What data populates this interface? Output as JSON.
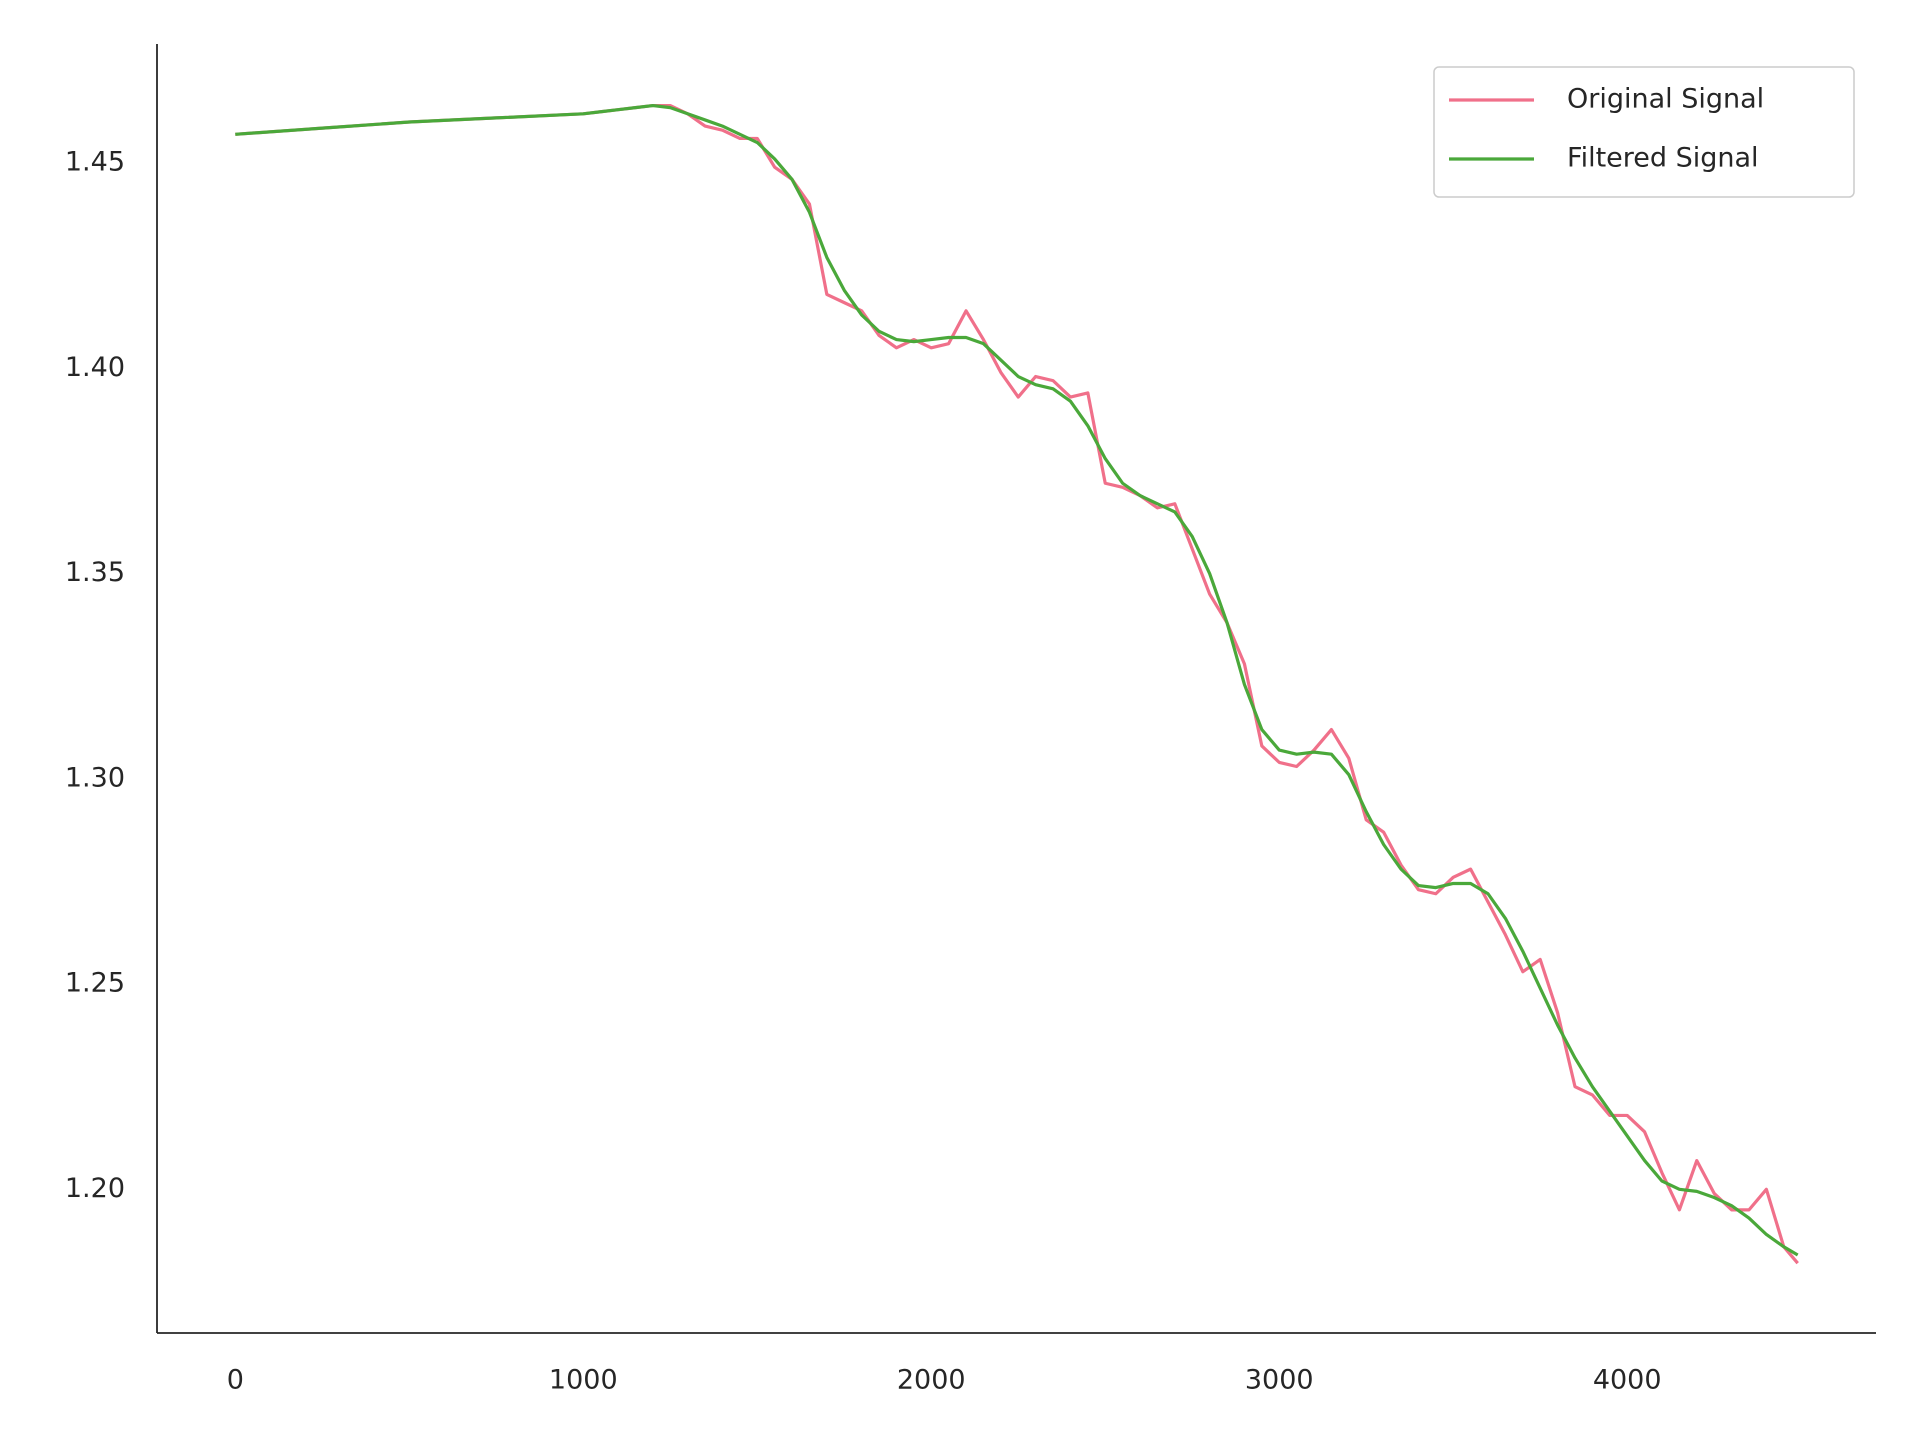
{
  "chart_data": {
    "type": "line",
    "x": [
      0,
      250,
      500,
      750,
      1000,
      1050,
      1100,
      1150,
      1200,
      1250,
      1300,
      1350,
      1400,
      1450,
      1500,
      1550,
      1600,
      1650,
      1700,
      1750,
      1800,
      1850,
      1900,
      1950,
      2000,
      2050,
      2100,
      2150,
      2200,
      2250,
      2300,
      2350,
      2400,
      2450,
      2500,
      2550,
      2600,
      2650,
      2700,
      2750,
      2800,
      2850,
      2900,
      2950,
      3000,
      3050,
      3100,
      3150,
      3200,
      3250,
      3300,
      3350,
      3400,
      3450,
      3500,
      3550,
      3600,
      3650,
      3700,
      3750,
      3800,
      3850,
      3900,
      3950,
      4000,
      4050,
      4100,
      4150,
      4200,
      4250,
      4300,
      4350,
      4400,
      4450,
      4490
    ],
    "series": [
      {
        "name": "Original Signal",
        "color": "#f0708a",
        "values": [
          1.457,
          1.4585,
          1.46,
          1.461,
          1.462,
          1.4625,
          1.463,
          1.4635,
          1.464,
          1.464,
          1.462,
          1.459,
          1.458,
          1.456,
          1.456,
          1.449,
          1.446,
          1.44,
          1.418,
          1.416,
          1.414,
          1.408,
          1.405,
          1.407,
          1.405,
          1.406,
          1.414,
          1.407,
          1.399,
          1.393,
          1.398,
          1.397,
          1.393,
          1.394,
          1.372,
          1.371,
          1.369,
          1.366,
          1.367,
          1.356,
          1.345,
          1.338,
          1.328,
          1.308,
          1.304,
          1.303,
          1.307,
          1.312,
          1.305,
          1.29,
          1.287,
          1.279,
          1.273,
          1.272,
          1.276,
          1.278,
          1.27,
          1.262,
          1.253,
          1.256,
          1.243,
          1.225,
          1.223,
          1.218,
          1.218,
          1.214,
          1.204,
          1.195,
          1.207,
          1.199,
          1.195,
          1.195,
          1.2,
          1.186,
          1.182
        ]
      },
      {
        "name": "Filtered Signal",
        "color": "#4aa83a",
        "values": [
          1.457,
          1.4585,
          1.46,
          1.461,
          1.462,
          1.4625,
          1.463,
          1.4635,
          1.464,
          1.4635,
          1.462,
          1.4605,
          1.459,
          1.457,
          1.455,
          1.451,
          1.446,
          1.438,
          1.427,
          1.419,
          1.413,
          1.409,
          1.407,
          1.4065,
          1.407,
          1.4075,
          1.4075,
          1.406,
          1.402,
          1.398,
          1.396,
          1.395,
          1.392,
          1.386,
          1.378,
          1.372,
          1.369,
          1.367,
          1.365,
          1.359,
          1.35,
          1.338,
          1.323,
          1.312,
          1.307,
          1.306,
          1.3065,
          1.306,
          1.301,
          1.292,
          1.284,
          1.278,
          1.274,
          1.2735,
          1.2745,
          1.2745,
          1.272,
          1.266,
          1.258,
          1.249,
          1.24,
          1.232,
          1.225,
          1.219,
          1.213,
          1.207,
          1.202,
          1.2,
          1.1995,
          1.198,
          1.196,
          1.193,
          1.189,
          1.186,
          1.184
        ]
      }
    ],
    "xlim": [
      -225,
      4715
    ],
    "xticks": [
      0,
      1000,
      2000,
      3000,
      4000
    ],
    "ylim": [
      1.165,
      1.479
    ],
    "yticks": [
      {
        "value": 1.2,
        "label": "1.20"
      },
      1.25,
      {
        "value": 1.3,
        "label": "1.30"
      },
      1.35,
      {
        "value": 1.4,
        "label": "1.40"
      },
      1.45
    ],
    "grid": false,
    "legend": "upper right"
  }
}
